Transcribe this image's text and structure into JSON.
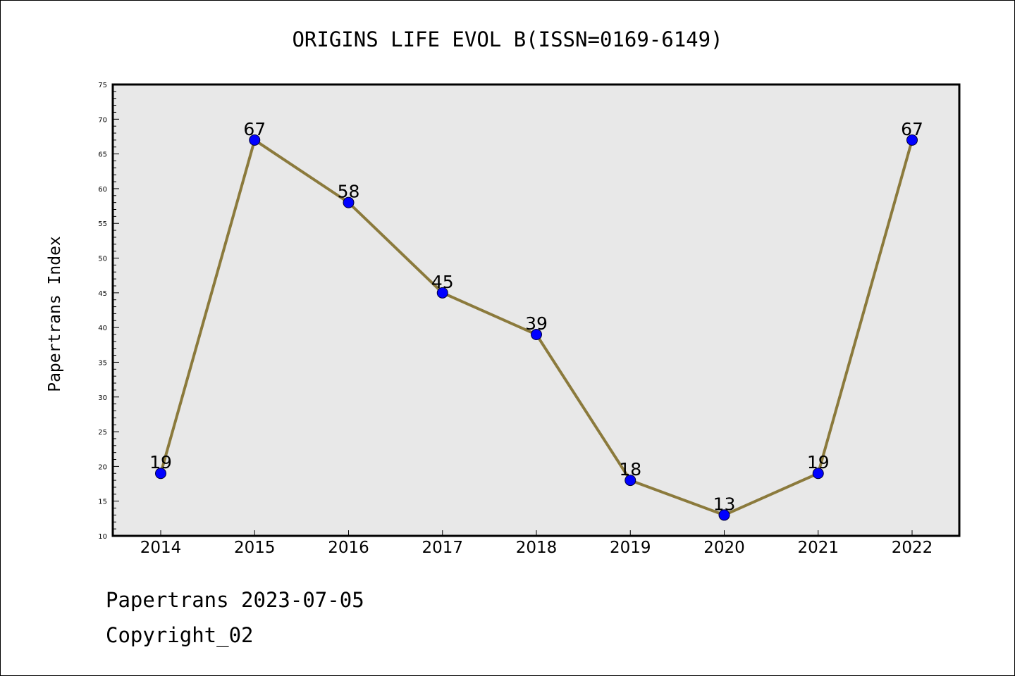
{
  "chart_data": {
    "type": "line",
    "title": "ORIGINS LIFE EVOL B(ISSN=0169-6149)",
    "xlabel": "",
    "ylabel": "Papertrans Index",
    "categories": [
      "2014",
      "2015",
      "2016",
      "2017",
      "2018",
      "2019",
      "2020",
      "2021",
      "2022"
    ],
    "series": [
      {
        "values": [
          19,
          67,
          58,
          45,
          39,
          18,
          13,
          19,
          67
        ]
      }
    ],
    "data_labels": [
      "19",
      "67",
      "58",
      "45",
      "39",
      "18",
      "13",
      "19",
      "67"
    ],
    "ylim": [
      10,
      75
    ],
    "yticks": [
      10,
      15,
      20,
      25,
      30,
      35,
      40,
      45,
      50,
      55,
      60,
      65,
      70,
      75
    ],
    "grid": false,
    "legend": "none",
    "colors": {
      "line": "#8b7a3c",
      "marker": "#0000ff",
      "plot_background": "#e8e8e8",
      "axis": "#000000"
    }
  },
  "footer": {
    "source_line": "Papertrans 2023-07-05",
    "copyright": "Copyright_02"
  }
}
